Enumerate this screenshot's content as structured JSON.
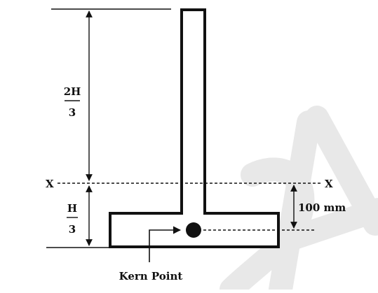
{
  "labels": {
    "upper_fraction_num": "2H",
    "upper_fraction_den": "3",
    "lower_fraction_num": "H",
    "lower_fraction_den": "3",
    "axis_left": "X",
    "axis_right": "X",
    "offset": "100 mm",
    "kern_point": "Kern Point"
  },
  "colors": {
    "ink": "#111111",
    "watermark": "#e6e6e6",
    "background": "#ffffff"
  }
}
